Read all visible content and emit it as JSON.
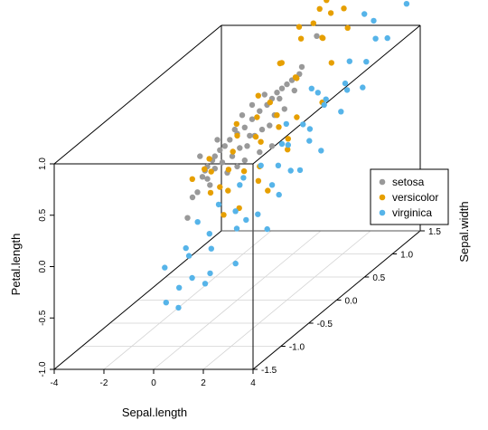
{
  "chart_data": {
    "type": "scatter",
    "projection": "3d",
    "title": "",
    "xlabel": "Sepal.length",
    "ylabel": "Sepal.width",
    "zlabel": "Petal.length",
    "x_ticks": [
      "-4",
      "-2",
      "0",
      "2",
      "4"
    ],
    "y_ticks": [
      "-1.5",
      "-1.0",
      "-0.5",
      "0.0",
      "0.5",
      "1.0",
      "1.5"
    ],
    "z_ticks": [
      "-1.0",
      "-0.5",
      "0.0",
      "0.5",
      "1.0"
    ],
    "xlim": [
      -4,
      4
    ],
    "ylim": [
      -1.5,
      1.5
    ],
    "zlim": [
      -1.0,
      1.0
    ],
    "grid": true,
    "legend_position": "right",
    "series": [
      {
        "name": "setosa",
        "color": "#999999",
        "points": [
          [
            -2.0,
            0.0,
            -0.2
          ],
          [
            -1.8,
            0.0,
            0.0
          ],
          [
            -1.6,
            0.0,
            0.05
          ],
          [
            -1.4,
            0.0,
            0.2
          ],
          [
            -1.3,
            0.0,
            0.26
          ],
          [
            -1.2,
            0.0,
            0.3
          ],
          [
            -1.0,
            0.0,
            0.36
          ],
          [
            -0.9,
            0.0,
            0.4
          ],
          [
            -0.7,
            0.0,
            0.46
          ],
          [
            -0.5,
            0.0,
            0.5
          ],
          [
            -0.3,
            0.0,
            0.56
          ],
          [
            0.0,
            0.0,
            0.62
          ],
          [
            0.3,
            0.0,
            0.68
          ],
          [
            0.6,
            0.0,
            0.76
          ],
          [
            0.9,
            0.0,
            0.84
          ],
          [
            1.2,
            0.0,
            0.9
          ],
          [
            1.4,
            0.0,
            0.96
          ],
          [
            1.6,
            0.0,
            1.02
          ],
          [
            1.8,
            0.0,
            1.06
          ],
          [
            2.0,
            0.0,
            1.1
          ],
          [
            2.2,
            0.0,
            1.14
          ],
          [
            2.5,
            0.0,
            1.2
          ],
          [
            2.6,
            0.0,
            1.27
          ],
          [
            3.2,
            0.0,
            1.57
          ],
          [
            -1.2,
            0.0,
            0.18
          ],
          [
            -0.9,
            0.0,
            0.28
          ],
          [
            -0.6,
            0.0,
            0.34
          ],
          [
            -0.2,
            0.0,
            0.4
          ],
          [
            0.1,
            0.0,
            0.48
          ],
          [
            0.4,
            0.0,
            0.5
          ],
          [
            0.7,
            0.0,
            0.6
          ],
          [
            1.0,
            0.0,
            0.66
          ],
          [
            1.3,
            0.0,
            0.7
          ],
          [
            -0.4,
            0.0,
            0.24
          ],
          [
            0.3,
            0.0,
            0.36
          ],
          [
            0.9,
            0.0,
            0.44
          ],
          [
            1.5,
            0.0,
            0.8
          ],
          [
            1.9,
            0.0,
            0.86
          ],
          [
            -1.5,
            0.0,
            0.4
          ],
          [
            -0.8,
            0.0,
            0.56
          ],
          [
            0.2,
            0.0,
            0.8
          ],
          [
            0.6,
            0.0,
            0.9
          ],
          [
            1.1,
            0.0,
            1.0
          ],
          [
            -1.1,
            0.0,
            0.12
          ],
          [
            0.0,
            0.0,
            0.3
          ],
          [
            0.5,
            0.0,
            0.6
          ],
          [
            1.7,
            0.0,
            0.96
          ],
          [
            2.3,
            0.0,
            1.04
          ],
          [
            -0.1,
            0.0,
            0.66
          ],
          [
            1.4,
            0.0,
            0.5
          ]
        ]
      },
      {
        "name": "versicolor",
        "color": "#E69F00",
        "points": [
          [
            -0.8,
            -0.45,
            0.38
          ],
          [
            -0.6,
            -0.2,
            0.34
          ],
          [
            -0.4,
            0.1,
            0.4
          ],
          [
            -0.2,
            -0.5,
            0.5
          ],
          [
            0.0,
            0.0,
            0.6
          ],
          [
            0.2,
            0.5,
            0.7
          ],
          [
            0.3,
            -0.3,
            0.2
          ],
          [
            0.5,
            0.2,
            0.45
          ],
          [
            0.6,
            0.8,
            0.8
          ],
          [
            0.8,
            -0.6,
            0.1
          ],
          [
            0.9,
            0.0,
            0.3
          ],
          [
            1.0,
            0.6,
            0.9
          ],
          [
            1.2,
            1.0,
            1.1
          ],
          [
            1.3,
            -0.2,
            0.25
          ],
          [
            1.5,
            0.4,
            0.6
          ],
          [
            1.6,
            1.2,
            1.3
          ],
          [
            1.8,
            0.1,
            0.42
          ],
          [
            2.0,
            0.8,
            0.95
          ],
          [
            2.1,
            1.3,
            1.5
          ],
          [
            2.3,
            0.5,
            0.7
          ],
          [
            -0.5,
            0.6,
            0.72
          ],
          [
            -0.3,
            0.9,
            0.9
          ],
          [
            0.1,
            1.1,
            1.05
          ],
          [
            0.4,
            1.3,
            1.25
          ],
          [
            0.7,
            1.4,
            1.45
          ],
          [
            1.1,
            1.5,
            1.7
          ],
          [
            1.4,
            0.9,
            1.15
          ],
          [
            1.7,
            1.4,
            1.62
          ],
          [
            -0.7,
            0.3,
            0.58
          ],
          [
            -0.1,
            0.4,
            0.6
          ],
          [
            0.5,
            -0.1,
            0.3
          ],
          [
            1.0,
            0.3,
            0.55
          ],
          [
            1.9,
            -0.3,
            0.2
          ],
          [
            2.2,
            1.0,
            1.2
          ],
          [
            -0.9,
            -0.1,
            0.42
          ],
          [
            0.2,
            -0.4,
            0.28
          ],
          [
            0.8,
            0.7,
            0.85
          ],
          [
            1.3,
            1.1,
            1.3
          ],
          [
            0.0,
            0.8,
            0.95
          ],
          [
            0.6,
            1.1,
            1.2
          ],
          [
            -0.4,
            -0.3,
            0.18
          ],
          [
            1.2,
            -0.5,
            0.12
          ],
          [
            1.6,
            0.2,
            0.48
          ],
          [
            2.4,
            1.4,
            1.6
          ],
          [
            0.3,
            0.2,
            0.5
          ],
          [
            0.9,
            1.2,
            1.38
          ],
          [
            -0.2,
            1.2,
            1.12
          ],
          [
            1.5,
            1.5,
            1.78
          ],
          [
            0.1,
            -0.2,
            0.36
          ],
          [
            0.7,
            0.4,
            0.62
          ]
        ]
      },
      {
        "name": "virginica",
        "color": "#56B4E9",
        "points": [
          [
            0.0,
            -1.3,
            -0.1
          ],
          [
            0.4,
            -1.1,
            0.0
          ],
          [
            0.8,
            -1.4,
            -0.25
          ],
          [
            1.2,
            -1.0,
            -0.05
          ],
          [
            1.6,
            -1.2,
            -0.2
          ],
          [
            2.0,
            -0.9,
            0.1
          ],
          [
            2.4,
            -0.7,
            0.15
          ],
          [
            2.8,
            -0.5,
            0.25
          ],
          [
            3.2,
            -0.3,
            0.4
          ],
          [
            3.6,
            -0.1,
            0.5
          ],
          [
            0.2,
            -0.8,
            0.12
          ],
          [
            0.6,
            -0.6,
            0.2
          ],
          [
            1.0,
            -0.4,
            0.3
          ],
          [
            1.4,
            -0.2,
            0.4
          ],
          [
            1.8,
            0.0,
            0.52
          ],
          [
            2.2,
            0.2,
            0.62
          ],
          [
            2.6,
            0.4,
            0.72
          ],
          [
            3.0,
            0.6,
            0.84
          ],
          [
            3.4,
            0.8,
            0.96
          ],
          [
            3.8,
            1.0,
            1.1
          ],
          [
            0.5,
            -1.5,
            -0.35
          ],
          [
            1.1,
            -1.3,
            -0.2
          ],
          [
            1.7,
            -0.6,
            0.05
          ],
          [
            2.3,
            -0.4,
            0.3
          ],
          [
            2.9,
            0.0,
            0.55
          ],
          [
            3.5,
            0.3,
            0.7
          ],
          [
            0.9,
            -0.9,
            0.05
          ],
          [
            1.5,
            -0.7,
            0.18
          ],
          [
            2.1,
            -0.2,
            0.4
          ],
          [
            2.7,
            0.1,
            0.62
          ],
          [
            3.3,
            0.5,
            0.82
          ],
          [
            3.9,
            1.3,
            1.3
          ],
          [
            1.3,
            0.3,
            0.58
          ],
          [
            1.9,
            0.6,
            0.75
          ],
          [
            2.5,
            0.9,
            0.92
          ],
          [
            3.1,
            1.1,
            1.05
          ],
          [
            0.7,
            -0.2,
            0.28
          ],
          [
            1.6,
            0.2,
            0.42
          ],
          [
            2.0,
            0.7,
            0.64
          ],
          [
            2.8,
            1.2,
            1.18
          ],
          [
            3.6,
            1.4,
            1.4
          ],
          [
            0.3,
            -1.0,
            -0.12
          ],
          [
            1.0,
            -1.5,
            -0.4
          ],
          [
            2.4,
            -1.1,
            -0.15
          ],
          [
            3.0,
            -0.8,
            0.05
          ],
          [
            3.7,
            0.6,
            0.8
          ],
          [
            1.2,
            0.8,
            0.7
          ],
          [
            2.2,
            1.3,
            1.2
          ],
          [
            2.6,
            -0.2,
            0.35
          ],
          [
            1.4,
            -1.2,
            -0.3
          ]
        ]
      }
    ]
  }
}
